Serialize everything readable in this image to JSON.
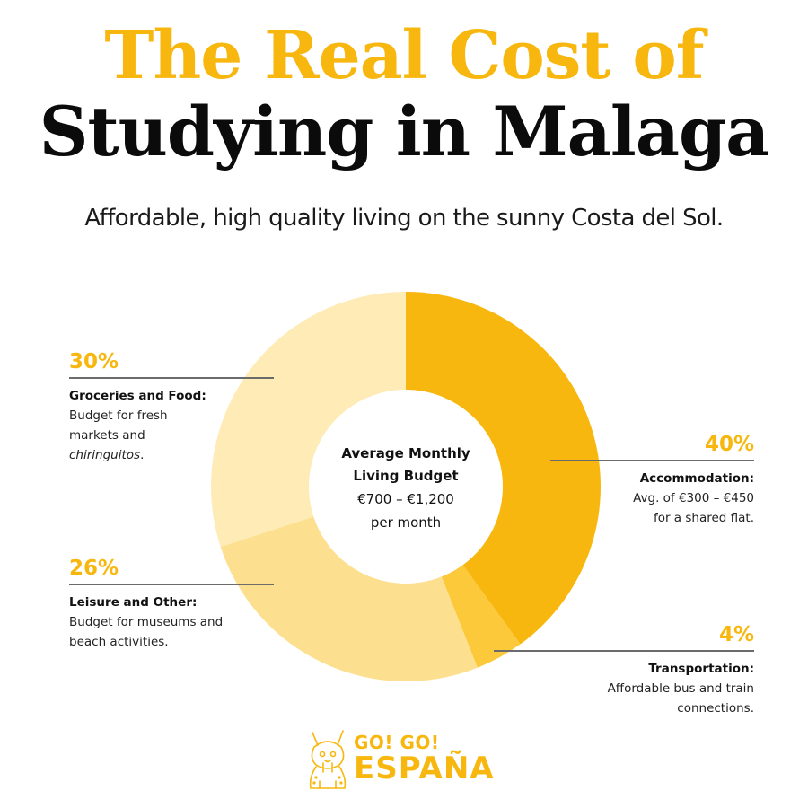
{
  "header": {
    "title_line1": "The Real Cost of",
    "title_line2": "Studying in Malaga",
    "subtitle": "Affordable, high quality living on the sunny Costa del Sol."
  },
  "center": {
    "title_line1": "Average Monthly",
    "title_line2": "Living Budget",
    "range": "€700 – €1,200",
    "period": "per month"
  },
  "callouts": {
    "groceries": {
      "pct": "30%",
      "label": "Groceries and Food:",
      "desc1": "Budget for fresh",
      "desc2": "markets and",
      "desc3": "chiringuitos",
      "desc3_suffix": "."
    },
    "leisure": {
      "pct": "26%",
      "label": "Leisure and Other:",
      "desc1": "Budget for museums and",
      "desc2": "beach activities."
    },
    "accommodation": {
      "pct": "40%",
      "label": "Accommodation:",
      "desc1": "Avg. of €300 – €450",
      "desc2": "for a shared flat."
    },
    "transportation": {
      "pct": "4%",
      "label": "Transportation:",
      "desc1": "Affordable bus and train",
      "desc2": "connections."
    }
  },
  "logo": {
    "line1": "GO! GO!",
    "line2": "ESPAÑA",
    "icon": "lynx-mascot-icon"
  },
  "colors": {
    "accent": "#F7B70E",
    "accommodation": "#F7B70E",
    "transportation": "#FCC93A",
    "leisure": "#FDE08F",
    "groceries": "#FEEBB6"
  },
  "chart_data": {
    "type": "pie",
    "variant": "donut",
    "title": "Average Monthly Living Budget",
    "subtitle": "€700 – €1,200 per month",
    "categories": [
      "Accommodation",
      "Transportation",
      "Leisure and Other",
      "Groceries and Food"
    ],
    "values": [
      40,
      4,
      26,
      30
    ],
    "unit": "%",
    "colors": [
      "#F7B70E",
      "#FCC93A",
      "#FDE08F",
      "#FEEBB6"
    ],
    "start_angle": "12 o'clock, clockwise",
    "annotations": [
      "Accommodation: Avg. of €300 – €450 for a shared flat.",
      "Transportation: Affordable bus and train connections.",
      "Leisure and Other: Budget for museums and beach activities.",
      "Groceries and Food: Budget for fresh markets and chiringuitos."
    ],
    "legend": "callout labels"
  }
}
